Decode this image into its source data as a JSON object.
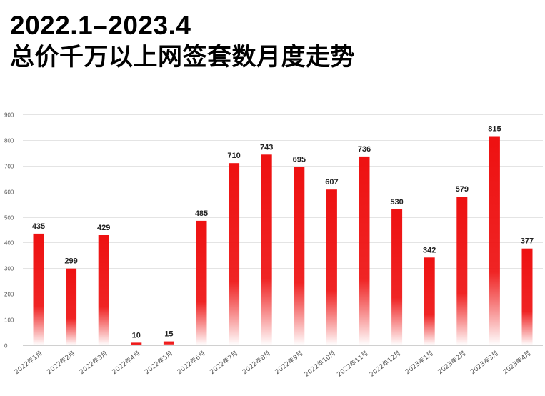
{
  "title_line1": "2022.1–2023.4",
  "title_line2": "总价千万以上网签套数月度走势",
  "colors": {
    "bar_top": "#ee1111",
    "bar_bottom": "#ffffff"
  },
  "chart_data": {
    "type": "bar",
    "title": "2022.1–2023.4 总价千万以上网签套数月度走势",
    "categories": [
      "2022年1月",
      "2022年2月",
      "2022年3月",
      "2022年4月",
      "2022年5月",
      "2022年6月",
      "2022年7月",
      "2022年8月",
      "2022年9月",
      "2022年10月",
      "2022年11月",
      "2022年12月",
      "2023年1月",
      "2023年2月",
      "2023年3月",
      "2023年4月"
    ],
    "values": [
      435,
      299,
      429,
      10,
      15,
      485,
      710,
      743,
      695,
      607,
      736,
      530,
      342,
      579,
      815,
      377
    ],
    "yticks": [
      0,
      100,
      200,
      300,
      400,
      500,
      600,
      700,
      800,
      900
    ],
    "ylim": [
      0,
      900
    ],
    "grid": true,
    "legend": "none",
    "data_labels": true
  }
}
